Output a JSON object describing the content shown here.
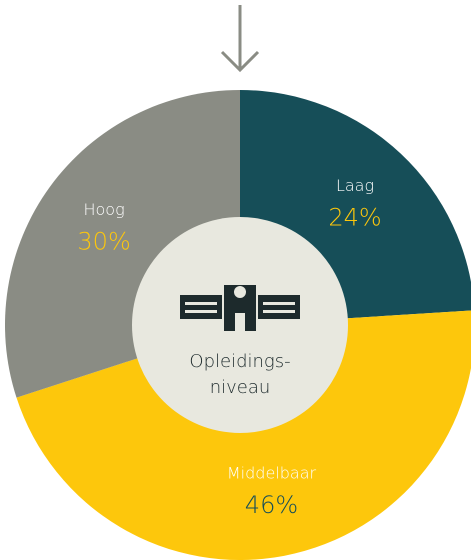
{
  "chart_data": {
    "type": "pie",
    "categories": [
      "Laag",
      "Middelbaar",
      "Hoog"
    ],
    "values": [
      24,
      46,
      30
    ],
    "value_labels": [
      "24%",
      "46%",
      "30%"
    ],
    "colors": [
      "#164e58",
      "#fdc70c",
      "#8a8c84"
    ],
    "center_label": [
      "Opleidings-",
      "niveau"
    ]
  }
}
